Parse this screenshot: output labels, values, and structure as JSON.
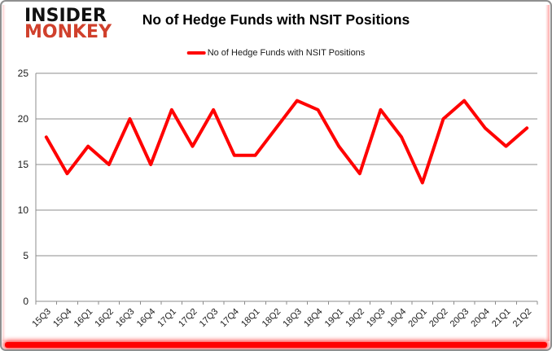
{
  "widget": {
    "logo": {
      "line1": "INSIDER",
      "line2": "MONKEY"
    },
    "title": "No of Hedge Funds with NSIT Positions",
    "legend": {
      "label": "No of Hedge Funds with NSIT Positions"
    }
  },
  "colors": {
    "series_line": "#ff0000",
    "logo_black": "#111111",
    "logo_red": "#d0402c",
    "gridline": "#8c8c8c",
    "axis": "#8c8c8c",
    "tick_text": "#1a1a1a",
    "frame_border": "#8f8f8f",
    "glow_red": "#ff0000"
  },
  "chart_data": {
    "type": "line",
    "title": "No of Hedge Funds with NSIT Positions",
    "categories": [
      "15Q3",
      "15Q4",
      "16Q1",
      "16Q2",
      "16Q3",
      "16Q4",
      "17Q1",
      "17Q2",
      "17Q3",
      "17Q4",
      "18Q1",
      "18Q2",
      "18Q3",
      "18Q4",
      "19Q1",
      "19Q2",
      "19Q3",
      "19Q4",
      "20Q1",
      "20Q2",
      "20Q3",
      "20Q4",
      "21Q1",
      "21Q2"
    ],
    "series": [
      {
        "name": "No of Hedge Funds with NSIT Positions",
        "values": [
          18,
          14,
          17,
          15,
          20,
          15,
          21,
          17,
          21,
          16,
          16,
          19,
          22,
          21,
          17,
          14,
          21,
          18,
          13,
          20,
          22,
          19,
          17,
          19
        ]
      }
    ],
    "xlabel": "",
    "ylabel": "",
    "ylim": [
      0,
      25
    ],
    "yticks": [
      0,
      5,
      10,
      15,
      20,
      25
    ],
    "grid": true,
    "legend_position": "top-center",
    "line_color": "#ff0000",
    "line_width": 4
  }
}
